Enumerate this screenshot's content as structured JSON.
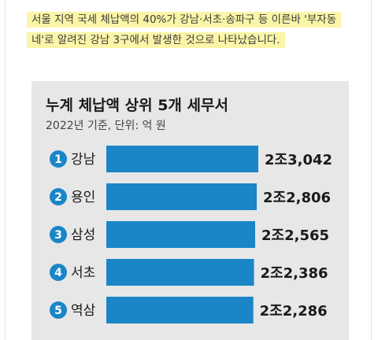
{
  "caption": {
    "text": "서울 지역 국세 체납액의 40%가 강남·서초·송파구 등 이른바 '부자동네'로 알려진 강남 3구에서 발생한 것으로 나타났습니다."
  },
  "colors": {
    "bar": "#1a86c7",
    "rank_badge": "#1a86c7",
    "card_background": "#e7e7e8",
    "caption_highlight": "#fbf5a8"
  },
  "chart_data": {
    "type": "bar",
    "orientation": "horizontal",
    "title": "누계 체납액 상위 5개 세무서",
    "subtitle": "2022년 기준, 단위: 억 원",
    "unit": "억 원",
    "categories": [
      "강남",
      "용인",
      "삼성",
      "서초",
      "역삼"
    ],
    "ranks": [
      "1",
      "2",
      "3",
      "4",
      "5"
    ],
    "values": [
      23042,
      22806,
      22565,
      22386,
      22286
    ],
    "value_labels": [
      "2조3,042",
      "2조2,806",
      "2조2,565",
      "2조2,386",
      "2조2,286"
    ],
    "xlim": [
      0,
      23042
    ],
    "grid": false,
    "legend": "none"
  }
}
